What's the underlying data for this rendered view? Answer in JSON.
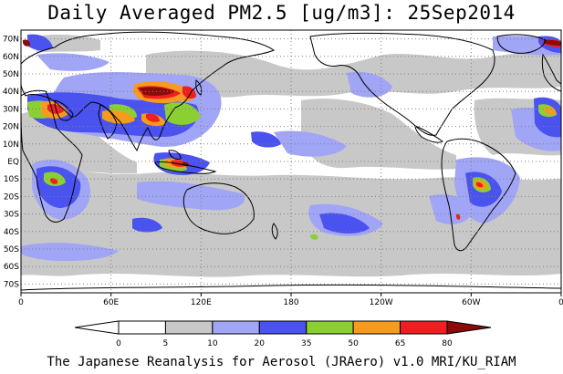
{
  "title": "Daily Averaged PM2.5 [ug/m3]: 25Sep2014",
  "footer": "The Japanese Reanalysis for Aerosol (JRAero) v1.0 MRI/KU_RIAM",
  "map": {
    "variable": "PM2.5",
    "units": "ug/m3",
    "date": "25Sep2014",
    "projection": "cylindrical-equidistant",
    "lon_range": [
      0,
      360
    ],
    "lat_range": [
      -75,
      75
    ],
    "lon_ticks": [
      {
        "value": 0,
        "label": "0"
      },
      {
        "value": 60,
        "label": "60E"
      },
      {
        "value": 120,
        "label": "120E"
      },
      {
        "value": 180,
        "label": "180"
      },
      {
        "value": 240,
        "label": "120W"
      },
      {
        "value": 300,
        "label": "60W"
      },
      {
        "value": 360,
        "label": "0"
      }
    ],
    "lat_ticks": [
      {
        "value": 70,
        "label": "70N"
      },
      {
        "value": 60,
        "label": "60N"
      },
      {
        "value": 50,
        "label": "50N"
      },
      {
        "value": 40,
        "label": "40N"
      },
      {
        "value": 30,
        "label": "30N"
      },
      {
        "value": 20,
        "label": "20N"
      },
      {
        "value": 10,
        "label": "10N"
      },
      {
        "value": 0,
        "label": "EQ"
      },
      {
        "value": -10,
        "label": "10S"
      },
      {
        "value": -20,
        "label": "20S"
      },
      {
        "value": -30,
        "label": "30S"
      },
      {
        "value": -40,
        "label": "40S"
      },
      {
        "value": -50,
        "label": "50S"
      },
      {
        "value": -60,
        "label": "60S"
      },
      {
        "value": -70,
        "label": "70S"
      }
    ],
    "grid": true,
    "colorbar": {
      "levels": [
        "0",
        "5",
        "10",
        "20",
        "35",
        "50",
        "65",
        "80"
      ],
      "colors": [
        "#ffffff",
        "#ffffff",
        "#c8c8c8",
        "#a0a5f5",
        "#4a52f0",
        "#8ccf32",
        "#f59b1e",
        "#f01e1e",
        "#8c0a0a"
      ]
    }
  }
}
